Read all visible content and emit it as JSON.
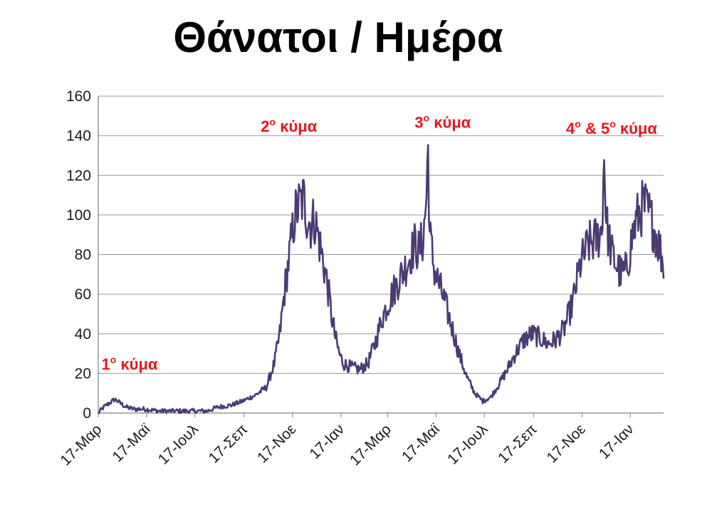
{
  "chart_data": {
    "type": "line",
    "title": "Θάνατοι / Ημέρα",
    "xlabel": "",
    "ylabel": "",
    "ylim": [
      0,
      160
    ],
    "yticks": [
      0,
      20,
      40,
      60,
      80,
      100,
      120,
      140,
      160
    ],
    "grid": true,
    "legend": "none",
    "x_tick_labels": [
      "17-Μαρ",
      "17-Μαϊ",
      "17-Ιουλ",
      "17-Σεπ",
      "17-Νοε",
      "17-Ιαν",
      "17-Μαρ",
      "17-Μαϊ",
      "17-Ιουλ",
      "17-Σεπ",
      "17-Νοε",
      "17-Ιαν"
    ],
    "x_tick_dates": [
      "2020-03-17",
      "2020-05-17",
      "2020-07-17",
      "2020-09-17",
      "2020-11-17",
      "2021-01-17",
      "2021-03-17",
      "2021-05-17",
      "2021-07-17",
      "2021-09-17",
      "2021-11-17",
      "2022-01-17"
    ],
    "x_range": [
      "2020-03-17",
      "2022-02-28"
    ],
    "annotations": [
      {
        "number": "1",
        "suffix": "ο",
        "text": "κύμα",
        "date": "2020-03-21",
        "y": 22
      },
      {
        "number": "2",
        "suffix": "ο",
        "text": "κύμα",
        "date": "2020-10-08",
        "y": 142
      },
      {
        "number": "3",
        "suffix": "ο",
        "text": "κύμα",
        "date": "2021-04-20",
        "y": 144
      },
      {
        "number": "4",
        "suffix": "ο",
        "text": "& 5",
        "suffix2": "ο",
        "text2": "κύμα",
        "date": "2021-10-28",
        "y": 141
      }
    ],
    "series": [
      {
        "color": "#4b3b74",
        "points": [
          [
            "2020-03-17",
            0
          ],
          [
            "2020-03-24",
            3
          ],
          [
            "2020-03-31",
            5
          ],
          [
            "2020-04-07",
            7
          ],
          [
            "2020-04-14",
            5
          ],
          [
            "2020-04-21",
            3
          ],
          [
            "2020-05-01",
            2
          ],
          [
            "2020-05-15",
            2
          ],
          [
            "2020-06-01",
            1
          ],
          [
            "2020-06-15",
            1
          ],
          [
            "2020-07-01",
            1
          ],
          [
            "2020-07-15",
            1
          ],
          [
            "2020-08-01",
            1
          ],
          [
            "2020-08-15",
            3
          ],
          [
            "2020-09-01",
            4
          ],
          [
            "2020-09-15",
            6
          ],
          [
            "2020-10-01",
            9
          ],
          [
            "2020-10-15",
            13
          ],
          [
            "2020-10-25",
            25
          ],
          [
            "2020-11-01",
            40
          ],
          [
            "2020-11-08",
            65
          ],
          [
            "2020-11-15",
            85
          ],
          [
            "2020-11-20",
            100
          ],
          [
            "2020-11-25",
            105
          ],
          [
            "2020-12-01",
            108
          ],
          [
            "2020-12-05",
            100
          ],
          [
            "2020-12-10",
            95
          ],
          [
            "2020-12-15",
            98
          ],
          [
            "2020-12-20",
            88
          ],
          [
            "2020-12-25",
            78
          ],
          [
            "2020-12-31",
            65
          ],
          [
            "2021-01-05",
            50
          ],
          [
            "2021-01-10",
            38
          ],
          [
            "2021-01-15",
            30
          ],
          [
            "2021-01-20",
            25
          ],
          [
            "2021-01-31",
            23
          ],
          [
            "2021-02-10",
            22
          ],
          [
            "2021-02-20",
            25
          ],
          [
            "2021-03-01",
            35
          ],
          [
            "2021-03-10",
            48
          ],
          [
            "2021-03-20",
            58
          ],
          [
            "2021-04-01",
            68
          ],
          [
            "2021-04-10",
            75
          ],
          [
            "2021-04-15",
            80
          ],
          [
            "2021-04-20",
            85
          ],
          [
            "2021-04-25",
            82
          ],
          [
            "2021-05-01",
            88
          ],
          [
            "2021-05-05",
            110
          ],
          [
            "2021-05-07",
            134
          ],
          [
            "2021-05-09",
            90
          ],
          [
            "2021-05-15",
            72
          ],
          [
            "2021-05-25",
            60
          ],
          [
            "2021-06-05",
            45
          ],
          [
            "2021-06-15",
            30
          ],
          [
            "2021-06-25",
            18
          ],
          [
            "2021-07-05",
            10
          ],
          [
            "2021-07-15",
            6
          ],
          [
            "2021-07-25",
            8
          ],
          [
            "2021-08-05",
            15
          ],
          [
            "2021-08-15",
            22
          ],
          [
            "2021-08-25",
            30
          ],
          [
            "2021-09-05",
            37
          ],
          [
            "2021-09-15",
            40
          ],
          [
            "2021-09-25",
            38
          ],
          [
            "2021-10-05",
            35
          ],
          [
            "2021-10-15",
            37
          ],
          [
            "2021-10-25",
            42
          ],
          [
            "2021-11-05",
            55
          ],
          [
            "2021-11-15",
            75
          ],
          [
            "2021-11-25",
            85
          ],
          [
            "2021-12-05",
            88
          ],
          [
            "2021-12-12",
            92
          ],
          [
            "2021-12-15",
            130
          ],
          [
            "2021-12-18",
            95
          ],
          [
            "2021-12-25",
            80
          ],
          [
            "2022-01-05",
            70
          ],
          [
            "2022-01-12",
            72
          ],
          [
            "2022-01-20",
            90
          ],
          [
            "2022-01-27",
            100
          ],
          [
            "2022-02-03",
            105
          ],
          [
            "2022-02-10",
            100
          ],
          [
            "2022-02-17",
            92
          ],
          [
            "2022-02-24",
            82
          ],
          [
            "2022-02-28",
            75
          ]
        ]
      }
    ]
  }
}
